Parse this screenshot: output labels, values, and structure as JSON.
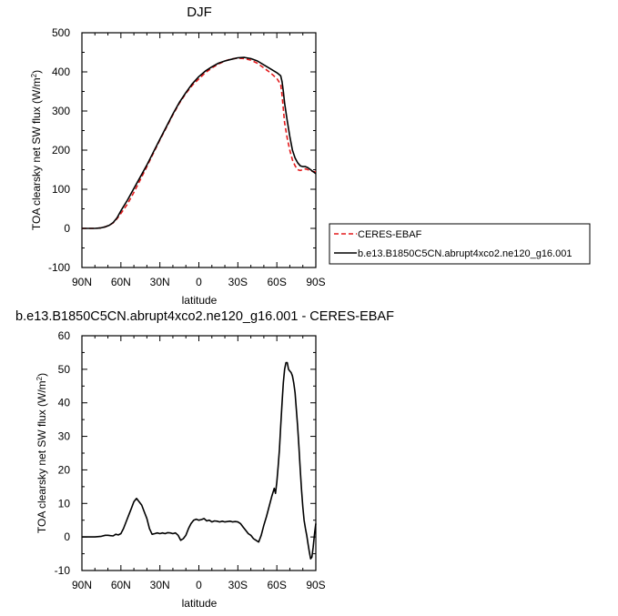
{
  "chart_data": [
    {
      "type": "line",
      "title": "DJF",
      "xlabel": "latitude",
      "ylabel": "TOA clearsky net SW flux (W/m",
      "ylabel_sup": "2",
      "ylabel_end": ")",
      "xlim": [
        90,
        -90
      ],
      "ylim": [
        -100,
        500
      ],
      "xticks": [
        90,
        60,
        30,
        0,
        -30,
        -60,
        -90
      ],
      "xtick_labels": [
        "90N",
        "60N",
        "30N",
        "0",
        "30S",
        "60S",
        "90S"
      ],
      "yticks": [
        -100,
        0,
        100,
        200,
        300,
        400,
        500
      ],
      "ytick_labels": [
        "-100",
        "0",
        "100",
        "200",
        "300",
        "400",
        "500"
      ],
      "legend_position": "right",
      "series": [
        {
          "name": "CERES-EBAF",
          "color": "#e41a1c",
          "dash": "dashed",
          "x": [
            90,
            84,
            80,
            76,
            72,
            69,
            66,
            63,
            60,
            55,
            50,
            45,
            40,
            35,
            30,
            25,
            20,
            15,
            10,
            5,
            0,
            -5,
            -10,
            -15,
            -20,
            -25,
            -30,
            -35,
            -40,
            -45,
            -50,
            -55,
            -60,
            -63,
            -64,
            -65,
            -66,
            -68,
            -70,
            -72,
            -74,
            -76,
            -78,
            -80,
            -82,
            -84,
            -86,
            -88,
            -90
          ],
          "y": [
            0,
            0,
            0,
            1,
            4,
            8,
            14,
            25,
            38,
            62,
            92,
            125,
            158,
            192,
            226,
            258,
            290,
            320,
            345,
            366,
            382,
            398,
            410,
            420,
            428,
            433,
            435,
            434,
            430,
            422,
            410,
            398,
            383,
            368,
            340,
            305,
            270,
            230,
            200,
            175,
            160,
            150,
            148,
            150,
            152,
            150,
            148,
            145,
            145
          ]
        },
        {
          "name": "b.e13.B1850C5CN.abrupt4xco2.ne120_g16.001",
          "color": "#000000",
          "dash": "solid",
          "x": [
            90,
            84,
            80,
            76,
            72,
            69,
            66,
            63,
            60,
            55,
            50,
            45,
            40,
            35,
            30,
            25,
            20,
            15,
            10,
            5,
            0,
            -5,
            -10,
            -15,
            -20,
            -25,
            -30,
            -35,
            -40,
            -45,
            -50,
            -55,
            -60,
            -63,
            -64,
            -65,
            -66,
            -68,
            -70,
            -72,
            -74,
            -76,
            -78,
            -80,
            -82,
            -84,
            -86,
            -88,
            -90
          ],
          "y": [
            0,
            0,
            0,
            1,
            4,
            8,
            15,
            27,
            45,
            72,
            102,
            132,
            162,
            195,
            228,
            260,
            292,
            322,
            347,
            370,
            388,
            402,
            413,
            422,
            428,
            432,
            436,
            437,
            434,
            428,
            418,
            408,
            398,
            390,
            375,
            350,
            320,
            275,
            235,
            200,
            180,
            168,
            160,
            158,
            158,
            155,
            150,
            145,
            140
          ]
        }
      ]
    },
    {
      "type": "line",
      "title": "b.e13.B1850C5CN.abrupt4xco2.ne120_g16.001 - CERES-EBAF",
      "xlabel": "latitude",
      "ylabel": "TOA clearsky net SW flux (W/m",
      "ylabel_sup": "2",
      "ylabel_end": ")",
      "xlim": [
        90,
        -90
      ],
      "ylim": [
        -10,
        60
      ],
      "xticks": [
        90,
        60,
        30,
        0,
        -30,
        -60,
        -90
      ],
      "xtick_labels": [
        "90N",
        "60N",
        "30N",
        "0",
        "30S",
        "60S",
        "90S"
      ],
      "yticks": [
        -10,
        0,
        10,
        20,
        30,
        40,
        50,
        60
      ],
      "ytick_labels": [
        "-10",
        "0",
        "10",
        "20",
        "30",
        "40",
        "50",
        "60"
      ],
      "series": [
        {
          "color": "#000000",
          "dash": "solid",
          "x": [
            90,
            85,
            80,
            75,
            72,
            70,
            68,
            66,
            64,
            62,
            60,
            58,
            56,
            54,
            52,
            50,
            48,
            46,
            44,
            42,
            40,
            38,
            36,
            34,
            32,
            30,
            28,
            26,
            24,
            22,
            20,
            18,
            16,
            14,
            12,
            10,
            8,
            6,
            4,
            2,
            0,
            -2,
            -4,
            -6,
            -8,
            -10,
            -12,
            -14,
            -16,
            -18,
            -20,
            -22,
            -24,
            -26,
            -28,
            -30,
            -32,
            -34,
            -36,
            -38,
            -40,
            -42,
            -44,
            -46,
            -48,
            -50,
            -52,
            -54,
            -56,
            -58,
            -59,
            -60,
            -61,
            -62,
            -63,
            -64,
            -65,
            -66,
            -67,
            -68,
            -69,
            -70,
            -71,
            -72,
            -73,
            -74,
            -75,
            -76,
            -77,
            -78,
            -79,
            -80,
            -81,
            -82,
            -83,
            -84,
            -85,
            -86,
            -87,
            -88,
            -89,
            -90
          ],
          "y": [
            0,
            0,
            0,
            0.2,
            0.5,
            0.5,
            0.4,
            0.3,
            0.8,
            0.6,
            1.0,
            2.5,
            4.5,
            6.5,
            8.5,
            10.5,
            11.5,
            10.5,
            9.5,
            7.5,
            5.5,
            2.5,
            0.8,
            1.0,
            1.2,
            1.0,
            1.2,
            1.0,
            1.3,
            1.2,
            1.0,
            1.2,
            0.5,
            -1.0,
            -0.5,
            0.5,
            2.5,
            4.0,
            5.0,
            5.3,
            5.0,
            5.2,
            5.5,
            4.8,
            5.0,
            4.5,
            4.8,
            4.7,
            4.5,
            4.7,
            4.5,
            4.6,
            4.7,
            4.5,
            4.6,
            4.5,
            4.0,
            3.0,
            2.0,
            1.0,
            0.5,
            -0.5,
            -1.0,
            -1.5,
            0.5,
            3.5,
            6.0,
            9.0,
            12.0,
            14.5,
            13.0,
            16.5,
            21.0,
            26.0,
            33.0,
            40.0,
            46.0,
            50.0,
            52.0,
            52.0,
            50.0,
            49.5,
            49.0,
            48.0,
            46.0,
            43.0,
            38.0,
            33.0,
            27.0,
            20.0,
            14.0,
            9.0,
            5.0,
            2.5,
            0.5,
            -2.0,
            -4.5,
            -6.5,
            -6.0,
            -3.0,
            1.0,
            4.0
          ]
        }
      ]
    }
  ]
}
